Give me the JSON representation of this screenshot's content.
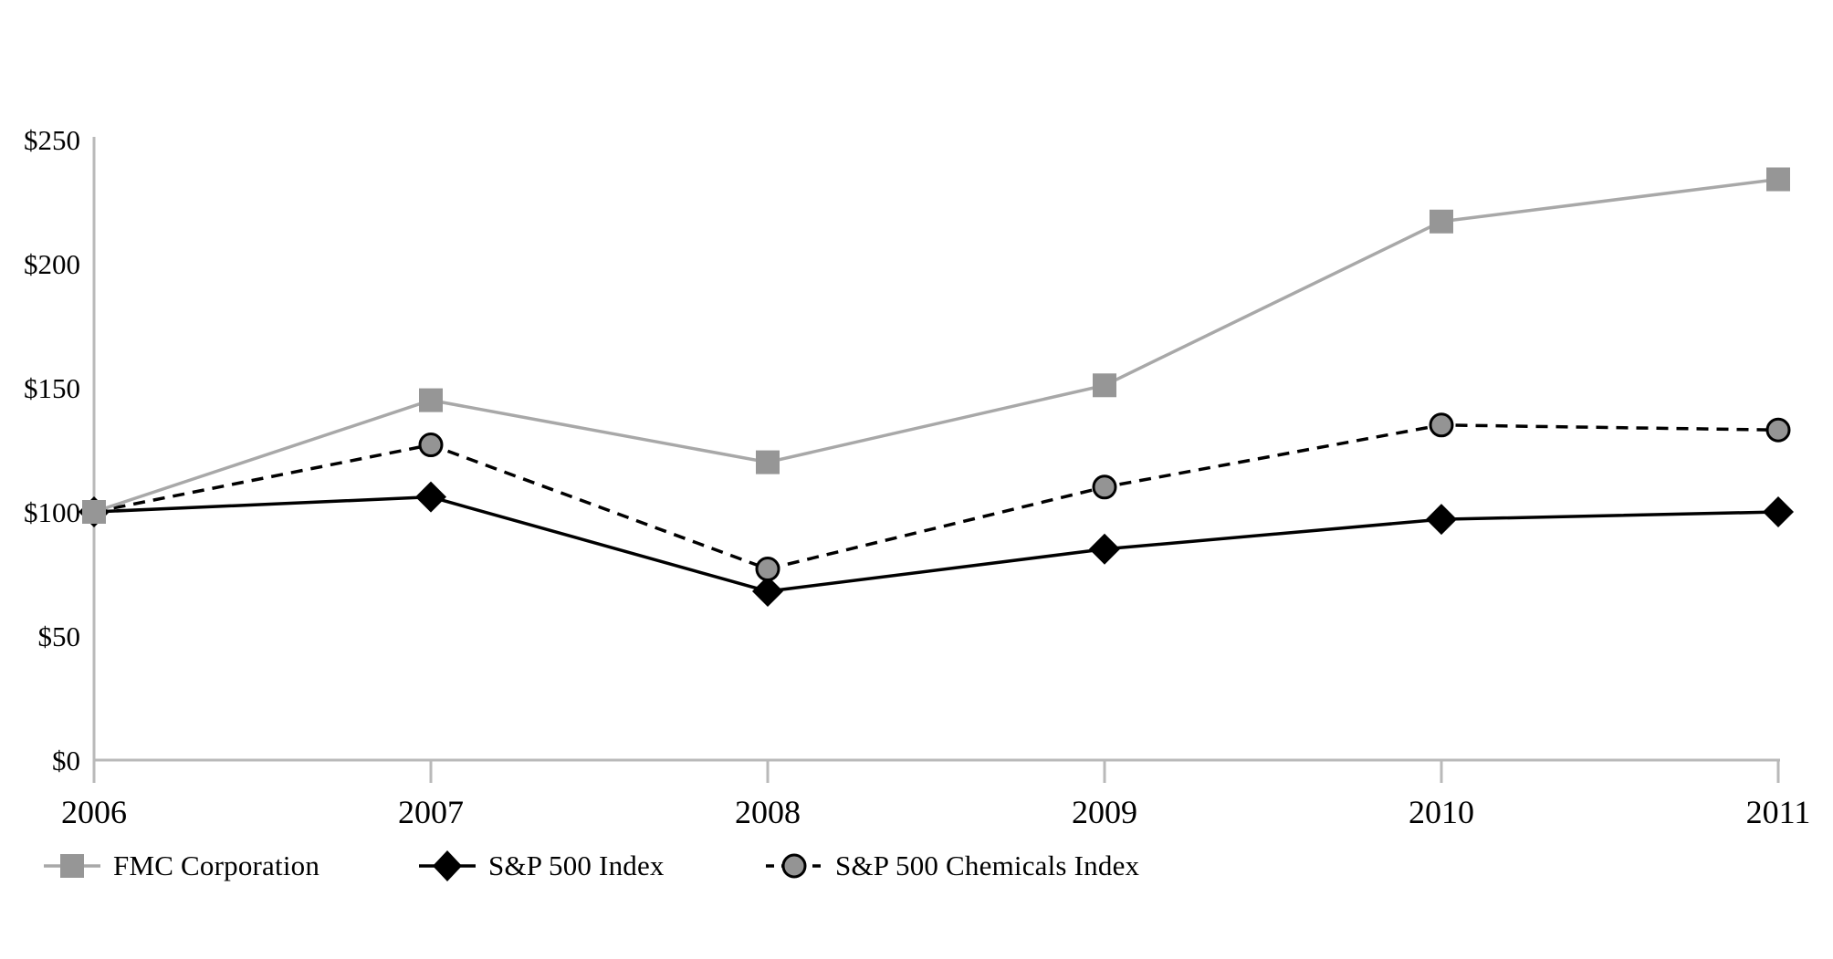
{
  "chart_data": {
    "type": "line",
    "title": "",
    "xlabel": "",
    "ylabel": "",
    "x": [
      "2006",
      "2007",
      "2008",
      "2009",
      "2010",
      "2011"
    ],
    "series": [
      {
        "name": "FMC Corporation",
        "values": [
          100,
          145,
          120,
          151,
          217,
          234
        ],
        "line_color": "#a8a8a8",
        "line_style": "solid",
        "marker": "square",
        "marker_color": "#969696",
        "z": 3
      },
      {
        "name": "S&P 500 Index",
        "values": [
          100,
          106,
          68,
          85,
          97,
          100
        ],
        "line_color": "#000000",
        "line_style": "solid",
        "marker": "diamond",
        "marker_color": "#000000",
        "z": 1
      },
      {
        "name": "S&P 500 Chemicals Index",
        "values": [
          100,
          127,
          77,
          110,
          135,
          133
        ],
        "line_color": "#000000",
        "line_style": "dashed",
        "marker": "circle",
        "marker_color": "#949494",
        "z": 2
      }
    ],
    "ylim": [
      0,
      250
    ],
    "yticks": [
      "$0",
      "$50",
      "$100",
      "$150",
      "$200",
      "$250"
    ],
    "ytick_values": [
      0,
      50,
      100,
      150,
      200,
      250
    ],
    "grid": "off",
    "legend_position": "bottom-left",
    "axis_color": "#b9b9b9",
    "text_color": "#000000"
  }
}
